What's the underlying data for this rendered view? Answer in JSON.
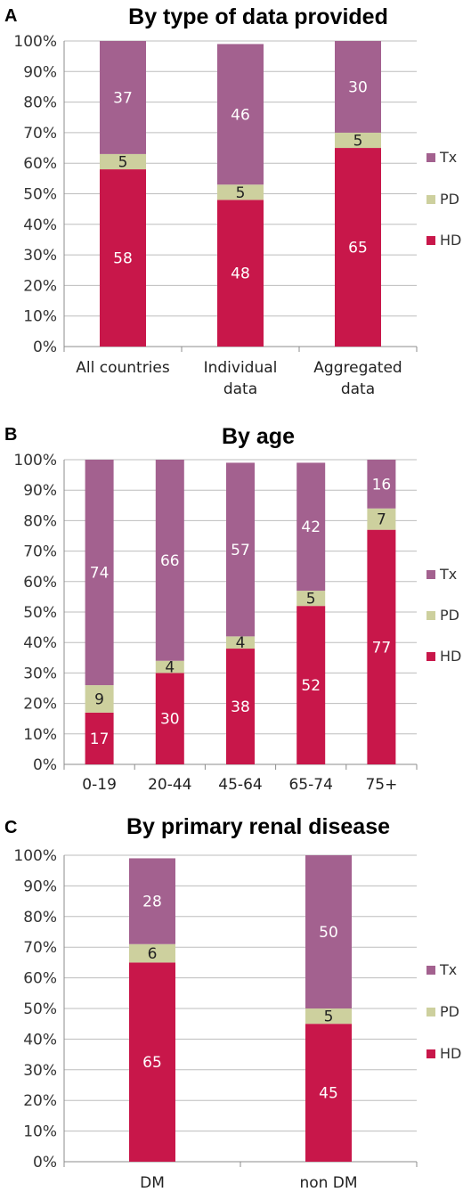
{
  "colors": {
    "HD": "#c8174a",
    "PD": "#cdd09e",
    "Tx": "#a3618f"
  },
  "chart_data": [
    {
      "type": "bar",
      "stacked": true,
      "panel": "A",
      "title": "By type of data provided",
      "ylim": [
        0,
        100
      ],
      "yticks": [
        "0%",
        "10%",
        "20%",
        "30%",
        "40%",
        "50%",
        "60%",
        "70%",
        "80%",
        "90%",
        "100%"
      ],
      "categories": [
        [
          "All countries"
        ],
        [
          "Individual",
          "data"
        ],
        [
          "Aggregated",
          "data"
        ]
      ],
      "series": [
        {
          "name": "HD",
          "values": [
            58,
            48,
            65
          ]
        },
        {
          "name": "PD",
          "values": [
            5,
            5,
            5
          ]
        },
        {
          "name": "Tx",
          "values": [
            37,
            46,
            30
          ]
        }
      ],
      "legend": [
        "Tx",
        "PD",
        "HD"
      ],
      "legend_position": "right",
      "grid": true
    },
    {
      "type": "bar",
      "stacked": true,
      "panel": "B",
      "title": "By age",
      "ylim": [
        0,
        100
      ],
      "yticks": [
        "0%",
        "10%",
        "20%",
        "30%",
        "40%",
        "50%",
        "60%",
        "70%",
        "80%",
        "90%",
        "100%"
      ],
      "categories": [
        [
          "0-19"
        ],
        [
          "20-44"
        ],
        [
          "45-64"
        ],
        [
          "65-74"
        ],
        [
          "75+"
        ]
      ],
      "series": [
        {
          "name": "HD",
          "values": [
            17,
            30,
            38,
            52,
            77
          ]
        },
        {
          "name": "PD",
          "values": [
            9,
            4,
            4,
            5,
            7
          ]
        },
        {
          "name": "Tx",
          "values": [
            74,
            66,
            57,
            42,
            16
          ]
        }
      ],
      "legend": [
        "Tx",
        "PD",
        "HD"
      ],
      "legend_position": "right",
      "grid": true
    },
    {
      "type": "bar",
      "stacked": true,
      "panel": "C",
      "title": "By primary renal disease",
      "ylim": [
        0,
        100
      ],
      "yticks": [
        "0%",
        "10%",
        "20%",
        "30%",
        "40%",
        "50%",
        "60%",
        "70%",
        "80%",
        "90%",
        "100%"
      ],
      "categories": [
        [
          "DM"
        ],
        [
          "non DM"
        ]
      ],
      "series": [
        {
          "name": "HD",
          "values": [
            65,
            45
          ]
        },
        {
          "name": "PD",
          "values": [
            6,
            5
          ]
        },
        {
          "name": "Tx",
          "values": [
            28,
            50
          ]
        }
      ],
      "legend": [
        "Tx",
        "PD",
        "HD"
      ],
      "legend_position": "right",
      "grid": true
    }
  ]
}
